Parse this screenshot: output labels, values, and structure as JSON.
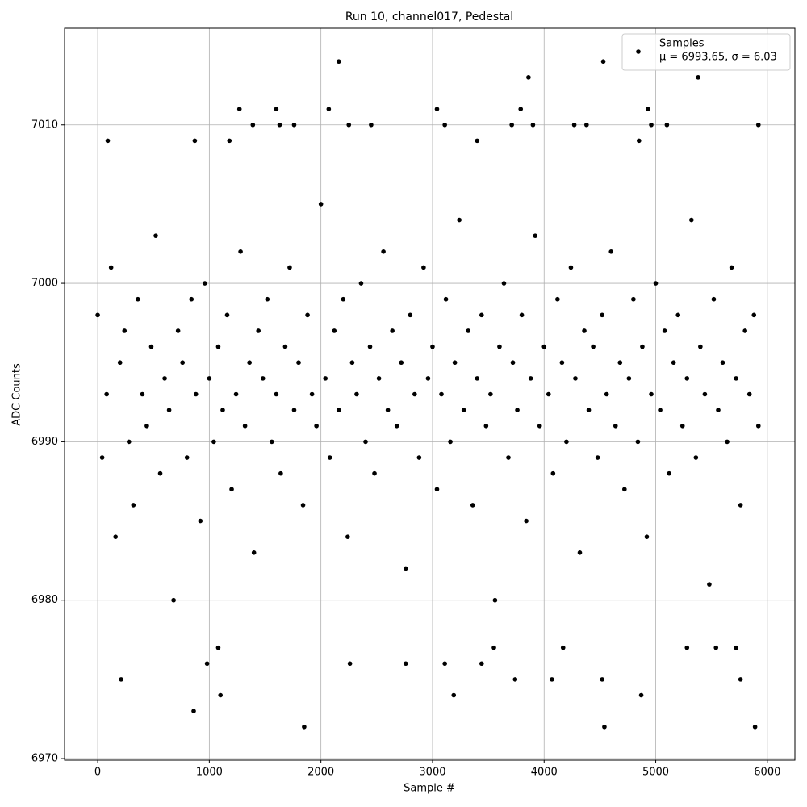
{
  "chart_data": {
    "type": "scatter",
    "title": "Run 10, channel017, Pedestal",
    "x_label": "Sample #",
    "y_label": "ADC Counts",
    "xlim": [
      -297,
      6247
    ],
    "ylim": [
      6969.9,
      7016.1
    ],
    "xticks": [
      0,
      1000,
      2000,
      3000,
      4000,
      5000,
      6000
    ],
    "yticks": [
      6970,
      6980,
      6990,
      7000,
      7010
    ],
    "grid": true,
    "legend": "upper right",
    "series": [
      {
        "name": "Samples",
        "detail": "μ = 6993.65, σ = 6.03",
        "color": "#000000",
        "x": [
          210,
          860,
          1100,
          1850,
          2160,
          3190,
          3860,
          4530,
          4540,
          4870,
          5380,
          5890,
          1270,
          1600,
          2070,
          3040,
          3790,
          4930,
          90,
          870,
          1180,
          3400,
          4850,
          980,
          1080,
          2260,
          2760,
          3110,
          3440,
          3740,
          4070,
          4520,
          5760,
          1390,
          1630,
          1760,
          2250,
          2450,
          3110,
          3710,
          3900,
          4270,
          4380,
          4960,
          5100,
          5920,
          5540,
          5720,
          5280,
          4170,
          3550,
          0,
          40,
          80,
          120,
          160,
          200,
          240,
          280,
          320,
          360,
          400,
          440,
          480,
          520,
          560,
          600,
          640,
          680,
          720,
          760,
          800,
          840,
          880,
          920,
          960,
          1000,
          1040,
          1080,
          1120,
          1160,
          1200,
          1240,
          1280,
          1320,
          1360,
          1400,
          1440,
          1480,
          1520,
          1560,
          1600,
          1640,
          1680,
          1720,
          1760,
          1800,
          1840,
          1880,
          1920,
          1960,
          2000,
          2040,
          2080,
          2120,
          2160,
          2200,
          2240,
          2280,
          2320,
          2360,
          2400,
          2440,
          2480,
          2520,
          2560,
          2600,
          2640,
          2680,
          2720,
          2760,
          2800,
          2840,
          2880,
          2920,
          2960,
          3000,
          3040,
          3080,
          3120,
          3160,
          3200,
          3240,
          3280,
          3320,
          3360,
          3400,
          3440,
          3480,
          3520,
          3560,
          3600,
          3640,
          3680,
          3720,
          3760,
          3800,
          3840,
          3880,
          3920,
          3960,
          4000,
          4040,
          4080,
          4120,
          4160,
          4200,
          4240,
          4280,
          4320,
          4360,
          4400,
          4440,
          4480,
          4520,
          4560,
          4600,
          4640,
          4680,
          4720,
          4760,
          4800,
          4840,
          4880,
          4920,
          4960,
          5000,
          5040,
          5080,
          5120,
          5160,
          5200,
          5240,
          5280,
          5320,
          5360,
          5400,
          5440,
          5480,
          5520,
          5560,
          5600,
          5640,
          5680,
          5720,
          5760,
          5800,
          5840,
          5880,
          5920
        ],
        "values": [
          6975,
          6973,
          6974,
          6972,
          7014,
          6974,
          7013,
          7014,
          6972,
          6974,
          7013,
          6972,
          7011,
          7011,
          7011,
          7011,
          7011,
          7011,
          7009,
          7009,
          7009,
          7009,
          7009,
          6976,
          6977,
          6976,
          6976,
          6976,
          6976,
          6975,
          6975,
          6975,
          6975,
          7010,
          7010,
          7010,
          7010,
          7010,
          7010,
          7010,
          7010,
          7010,
          7010,
          7010,
          7010,
          7010,
          6977,
          6977,
          6977,
          6977,
          6977,
          6998,
          6989,
          6993,
          7001,
          6984,
          6995,
          6997,
          6990,
          6986,
          6999,
          6993,
          6991,
          6996,
          7003,
          6988,
          6994,
          6992,
          6980,
          6997,
          6995,
          6989,
          6999,
          6993,
          6985,
          7000,
          6994,
          6990,
          6996,
          6992,
          6998,
          6987,
          6993,
          7002,
          6991,
          6995,
          6983,
          6997,
          6994,
          6999,
          6990,
          6993,
          6988,
          6996,
          7001,
          6992,
          6995,
          6986,
          6998,
          6993,
          6991,
          7005,
          6994,
          6989,
          6997,
          6992,
          6999,
          6984,
          6995,
          6993,
          7000,
          6990,
          6996,
          6988,
          6994,
          7002,
          6992,
          6997,
          6991,
          6995,
          6982,
          6998,
          6993,
          6989,
          7001,
          6994,
          6996,
          6987,
          6993,
          6999,
          6990,
          6995,
          7004,
          6992,
          6997,
          6986,
          6994,
          6998,
          6991,
          6993,
          6980,
          6996,
          7000,
          6989,
          6995,
          6992,
          6998,
          6985,
          6994,
          7003,
          6991,
          6996,
          6993,
          6988,
          6999,
          6995,
          6990,
          7001,
          6994,
          6983,
          6997,
          6992,
          6996,
          6989,
          6998,
          6993,
          7002,
          6991,
          6995,
          6987,
          6994,
          6999,
          6990,
          6996,
          6984,
          6993,
          7000,
          6992,
          6997,
          6988,
          6995,
          6998,
          6991,
          6994,
          7004,
          6989,
          6996,
          6993,
          6981,
          6999,
          6992,
          6995,
          6990,
          7001,
          6994,
          6986,
          6997,
          6993,
          6998,
          6991
        ]
      }
    ]
  }
}
